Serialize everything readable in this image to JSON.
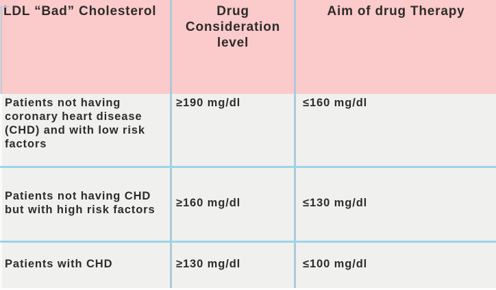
{
  "title": "LDL cholesterol drug therapy table",
  "colors": {
    "header_bg": "#fbcaca",
    "row_bg": "#f0f0ee",
    "border_horizontal": "#9cd3e8",
    "border_vertical": "#aacbdc",
    "text": "#2d2c2b"
  },
  "table": {
    "headers": [
      {
        "label": "LDL “Bad” Cholesterol"
      },
      {
        "label": "Drug\nConsideration\nlevel"
      },
      {
        "label": "Aim of drug Therapy"
      }
    ],
    "rows": [
      {
        "condition": "Patients not having\ncoronary heart disease\n(CHD) and with low risk\nfactors",
        "drug_level": "≥190 mg/dl",
        "aim": "≤160 mg/dl"
      },
      {
        "condition": "Patients not having CHD\nbut with high risk factors",
        "drug_level": "≥160 mg/dl",
        "aim": "≤130 mg/dl"
      },
      {
        "condition": "Patients with CHD",
        "drug_level": "≥130 mg/dl",
        "aim": "≤100 mg/dl"
      }
    ]
  },
  "chart_data": {
    "type": "table",
    "title": "",
    "columns": [
      "LDL “Bad” Cholesterol",
      "Drug Consideration level",
      "Aim of drug Therapy"
    ],
    "rows": [
      [
        "Patients not having coronary heart disease (CHD) and with low risk factors",
        "≥190 mg/dl",
        "≤160 mg/dl"
      ],
      [
        "Patients not having CHD but with high risk factors",
        "≥160 mg/dl",
        "≤130 mg/dl"
      ],
      [
        "Patients with CHD",
        "≥130 mg/dl",
        "≤100 mg/dl"
      ]
    ]
  }
}
